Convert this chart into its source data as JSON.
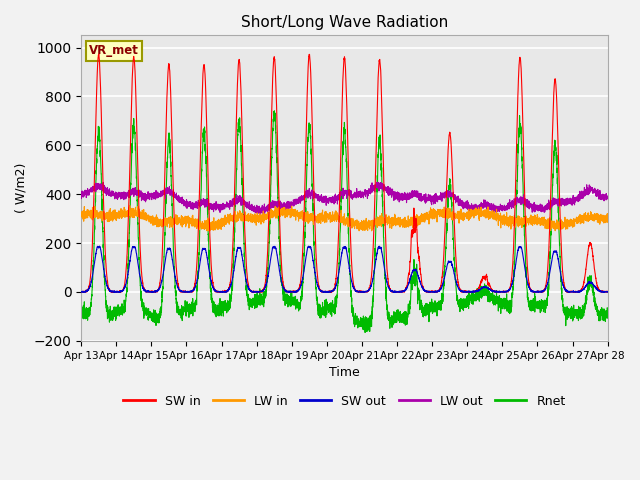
{
  "title": "Short/Long Wave Radiation",
  "ylabel": "( W/m2)",
  "xlabel": "Time",
  "station_label": "VR_met",
  "ylim": [
    -200,
    1050
  ],
  "yticks": [
    -200,
    0,
    200,
    400,
    600,
    800,
    1000
  ],
  "x_tick_labels": [
    "Apr 13",
    "Apr 14",
    "Apr 15",
    "Apr 16",
    "Apr 17",
    "Apr 18",
    "Apr 19",
    "Apr 20",
    "Apr 21",
    "Apr 22",
    "Apr 23",
    "Apr 24",
    "Apr 25",
    "Apr 26",
    "Apr 27",
    "Apr 28"
  ],
  "colors": {
    "SW_in": "#ff0000",
    "LW_in": "#ff9900",
    "SW_out": "#0000cc",
    "LW_out": "#aa00aa",
    "Rnet": "#00bb00"
  },
  "legend_labels": [
    "SW in",
    "LW in",
    "SW out",
    "LW out",
    "Rnet"
  ],
  "bg_color": "#e8e8e8",
  "grid_color": "#ffffff",
  "n_days": 15,
  "pts_per_day": 288,
  "SW_in_peaks": [
    970,
    960,
    930,
    930,
    950,
    960,
    970,
    960,
    950,
    470,
    650,
    100,
    960,
    870,
    200
  ],
  "fig_bg": "#f2f2f2"
}
